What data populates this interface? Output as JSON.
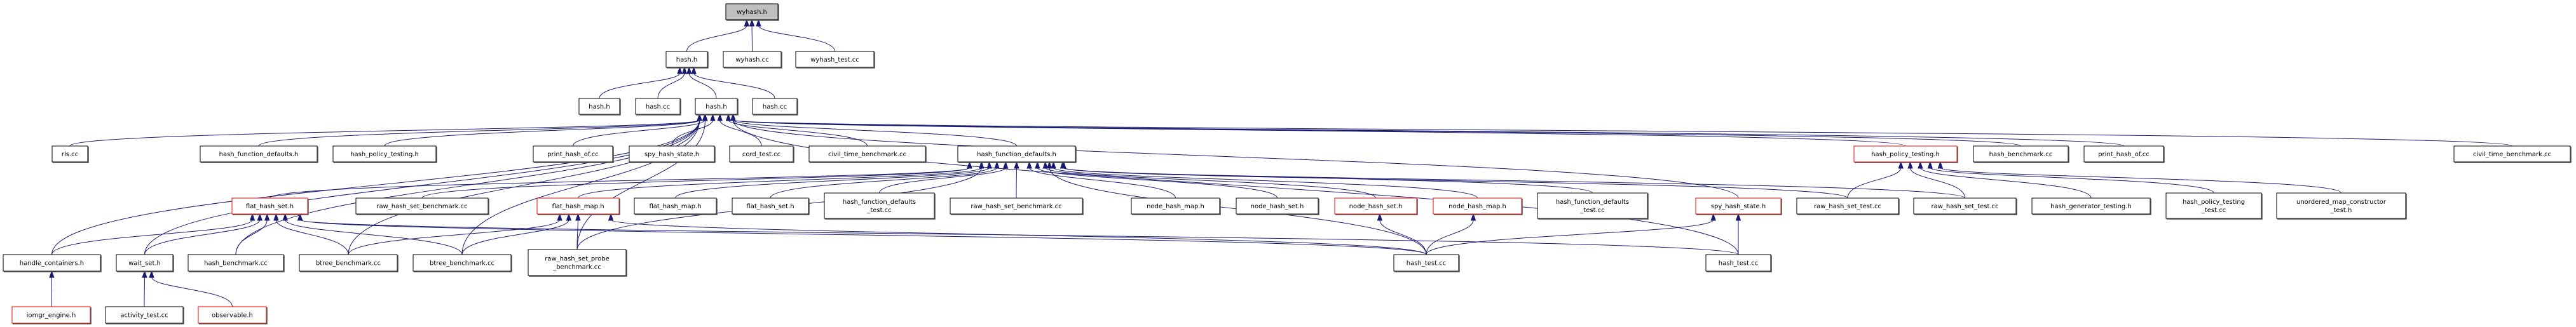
{
  "colors": {
    "edge": "#191970",
    "highlight_border": "#ff0000",
    "root_fill": "#bfbfbf"
  },
  "nodes": {
    "wyhash_h": {
      "label": [
        "wyhash.h"
      ],
      "style": "root"
    },
    "hash_h_r2": {
      "label": [
        "hash.h"
      ]
    },
    "wyhash_cc": {
      "label": [
        "wyhash.cc"
      ]
    },
    "wyhash_test_cc": {
      "label": [
        "wyhash_test.cc"
      ]
    },
    "hash_h_a": {
      "label": [
        "hash.h"
      ]
    },
    "hash_cc_a": {
      "label": [
        "hash.cc"
      ]
    },
    "hash_h_c": {
      "label": [
        "hash.h"
      ]
    },
    "hash_cc_b": {
      "label": [
        "hash.cc"
      ]
    },
    "rls_cc": {
      "label": [
        "rls.cc"
      ]
    },
    "hfd_h_l": {
      "label": [
        "hash_function_defaults.h"
      ]
    },
    "hpt_h_l": {
      "label": [
        "hash_policy_testing.h"
      ]
    },
    "print_l": {
      "label": [
        "print_hash_of.cc"
      ]
    },
    "spy_l": {
      "label": [
        "spy_hash_state.h"
      ]
    },
    "cord_test": {
      "label": [
        "cord_test.cc"
      ]
    },
    "civil_l": {
      "label": [
        "civil_time_benchmark.cc"
      ]
    },
    "hfd_h_c": {
      "label": [
        "hash_function_defaults.h"
      ]
    },
    "hpt_h_r": {
      "label": [
        "hash_policy_testing.h"
      ],
      "style": "red"
    },
    "hash_bench_r4": {
      "label": [
        "hash_benchmark.cc"
      ]
    },
    "print_r": {
      "label": [
        "print_hash_of.cc"
      ]
    },
    "civil_r": {
      "label": [
        "civil_time_benchmark.cc"
      ]
    },
    "flat_set_red": {
      "label": [
        "flat_hash_set.h"
      ],
      "style": "red"
    },
    "rhsb_l": {
      "label": [
        "raw_hash_set_benchmark.cc"
      ]
    },
    "flat_map_red": {
      "label": [
        "flat_hash_map.h"
      ],
      "style": "red"
    },
    "flat_map": {
      "label": [
        "flat_hash_map.h"
      ]
    },
    "flat_set": {
      "label": [
        "flat_hash_set.h"
      ]
    },
    "hfdt_l": {
      "label": [
        "hash_function_defaults",
        "_test.cc"
      ]
    },
    "rhsb_c": {
      "label": [
        "raw_hash_set_benchmark.cc"
      ]
    },
    "node_map": {
      "label": [
        "node_hash_map.h"
      ]
    },
    "node_set": {
      "label": [
        "node_hash_set.h"
      ]
    },
    "node_set_red": {
      "label": [
        "node_hash_set.h"
      ],
      "style": "red"
    },
    "node_map_red": {
      "label": [
        "node_hash_map.h"
      ],
      "style": "red"
    },
    "hfdt_r": {
      "label": [
        "hash_function_defaults",
        "_test.cc"
      ]
    },
    "spy_red": {
      "label": [
        "spy_hash_state.h"
      ],
      "style": "red"
    },
    "rhst_a": {
      "label": [
        "raw_hash_set_test.cc"
      ]
    },
    "rhst_b": {
      "label": [
        "raw_hash_set_test.cc"
      ]
    },
    "hgt": {
      "label": [
        "hash_generator_testing.h"
      ]
    },
    "hptt": {
      "label": [
        "hash_policy_testing",
        "_test.cc"
      ]
    },
    "umct": {
      "label": [
        "unordered_map_constructor",
        "_test.h"
      ]
    },
    "handle": {
      "label": [
        "handle_containers.h"
      ]
    },
    "wait": {
      "label": [
        "wait_set.h"
      ]
    },
    "hash_bench_r6": {
      "label": [
        "hash_benchmark.cc"
      ]
    },
    "btree_a": {
      "label": [
        "btree_benchmark.cc"
      ]
    },
    "btree_b": {
      "label": [
        "btree_benchmark.cc"
      ]
    },
    "probe": {
      "label": [
        "raw_hash_set_probe",
        "_benchmark.cc"
      ]
    },
    "hash_test_a": {
      "label": [
        "hash_test.cc"
      ]
    },
    "hash_test_b": {
      "label": [
        "hash_test.cc"
      ]
    },
    "iomgr": {
      "label": [
        "iomgr_engine.h"
      ],
      "style": "red"
    },
    "activity": {
      "label": [
        "activity_test.cc"
      ]
    },
    "observable": {
      "label": [
        "observable.h"
      ],
      "style": "red"
    }
  },
  "edges": [
    [
      "hash_h_r2",
      "wyhash_h"
    ],
    [
      "wyhash_cc",
      "wyhash_h"
    ],
    [
      "wyhash_test_cc",
      "wyhash_h"
    ],
    [
      "hash_h_a",
      "hash_h_r2"
    ],
    [
      "hash_cc_a",
      "hash_h_r2"
    ],
    [
      "hash_h_c",
      "hash_h_r2"
    ],
    [
      "hash_cc_b",
      "hash_h_r2"
    ],
    [
      "rls_cc",
      "hash_h_c"
    ],
    [
      "hfd_h_l",
      "hash_h_c"
    ],
    [
      "hpt_h_l",
      "hash_h_c"
    ],
    [
      "print_l",
      "hash_h_c"
    ],
    [
      "spy_l",
      "hash_h_c"
    ],
    [
      "cord_test",
      "hash_h_c"
    ],
    [
      "civil_l",
      "hash_h_c"
    ],
    [
      "hfd_h_c",
      "hash_h_c"
    ],
    [
      "hpt_h_r",
      "hash_h_c"
    ],
    [
      "hash_bench_r4",
      "hash_h_c"
    ],
    [
      "print_r",
      "hash_h_c"
    ],
    [
      "civil_r",
      "hash_h_c"
    ],
    [
      "spy_red",
      "hash_h_c"
    ],
    [
      "hash_test_b",
      "hash_h_c"
    ],
    [
      "handle",
      "hash_h_c"
    ],
    [
      "wait",
      "hash_h_c"
    ],
    [
      "hash_bench_r6",
      "hash_h_c"
    ],
    [
      "btree_a",
      "hash_h_c"
    ],
    [
      "btree_b",
      "hash_h_c"
    ],
    [
      "probe",
      "hash_h_c"
    ],
    [
      "flat_set_red",
      "hfd_h_c"
    ],
    [
      "rhsb_l",
      "hfd_h_c"
    ],
    [
      "flat_map_red",
      "hfd_h_c"
    ],
    [
      "flat_map",
      "hfd_h_c"
    ],
    [
      "flat_set",
      "hfd_h_c"
    ],
    [
      "hfdt_l",
      "hfd_h_c"
    ],
    [
      "rhsb_c",
      "hfd_h_c"
    ],
    [
      "node_map",
      "hfd_h_c"
    ],
    [
      "node_set",
      "hfd_h_c"
    ],
    [
      "node_set_red",
      "hfd_h_c"
    ],
    [
      "node_map_red",
      "hfd_h_c"
    ],
    [
      "hfdt_r",
      "hfd_h_c"
    ],
    [
      "rhst_a",
      "hfd_h_c"
    ],
    [
      "rhst_b",
      "hfd_h_c"
    ],
    [
      "probe",
      "hfd_h_c"
    ],
    [
      "hash_test_a",
      "hfd_h_c"
    ],
    [
      "handle",
      "flat_set_red"
    ],
    [
      "wait",
      "flat_set_red"
    ],
    [
      "hash_bench_r6",
      "flat_set_red"
    ],
    [
      "btree_a",
      "flat_set_red"
    ],
    [
      "btree_b",
      "flat_set_red"
    ],
    [
      "hash_test_a",
      "flat_set_red"
    ],
    [
      "hash_test_b",
      "flat_set_red"
    ],
    [
      "btree_a",
      "flat_map_red"
    ],
    [
      "btree_b",
      "flat_map_red"
    ],
    [
      "probe",
      "flat_map_red"
    ],
    [
      "hash_test_a",
      "flat_map_red"
    ],
    [
      "hash_test_a",
      "node_set_red"
    ],
    [
      "hash_test_a",
      "node_map_red"
    ],
    [
      "hash_test_a",
      "spy_red"
    ],
    [
      "hash_test_b",
      "spy_red"
    ],
    [
      "rhst_a",
      "hpt_h_r"
    ],
    [
      "rhst_b",
      "hpt_h_r"
    ],
    [
      "hgt",
      "hpt_h_r"
    ],
    [
      "hptt",
      "hpt_h_r"
    ],
    [
      "umct",
      "hpt_h_r"
    ],
    [
      "iomgr",
      "handle"
    ],
    [
      "activity",
      "wait"
    ],
    [
      "observable",
      "wait"
    ]
  ]
}
